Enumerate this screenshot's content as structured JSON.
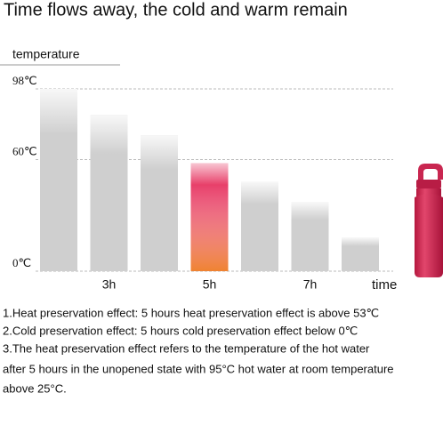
{
  "chart_data": {
    "type": "bar",
    "title": "Time flows away, the cold and warm remain",
    "y_label": "temperature",
    "x_label": "time",
    "categories": [
      null,
      "3h",
      null,
      "5h",
      null,
      "7h",
      null
    ],
    "values": [
      98,
      84,
      73,
      58,
      48,
      37,
      18
    ],
    "colors": [
      "#cfcfcf",
      "#cfcfcf",
      "#cfcfcf",
      "#e8406a",
      "#cfcfcf",
      "#cfcfcf",
      "#cfcfcf"
    ],
    "ylim": [
      0,
      98
    ],
    "yticks": [
      {
        "value": 0,
        "label": "0℃"
      },
      {
        "value": 60,
        "label": "60℃"
      },
      {
        "value": 98,
        "label": "98℃"
      }
    ],
    "grid": true,
    "notes": [
      "1.Heat preservation effect: 5 hours heat preservation effect is above 53℃",
      "2.Cold preservation effect: 5 hours cold preservation effect below 0℃",
      "3.The heat preservation effect refers to the temperature of the hot water",
      "after 5 hours in the unopened state with 95°C hot water at room temperature",
      "above 25°C."
    ]
  }
}
